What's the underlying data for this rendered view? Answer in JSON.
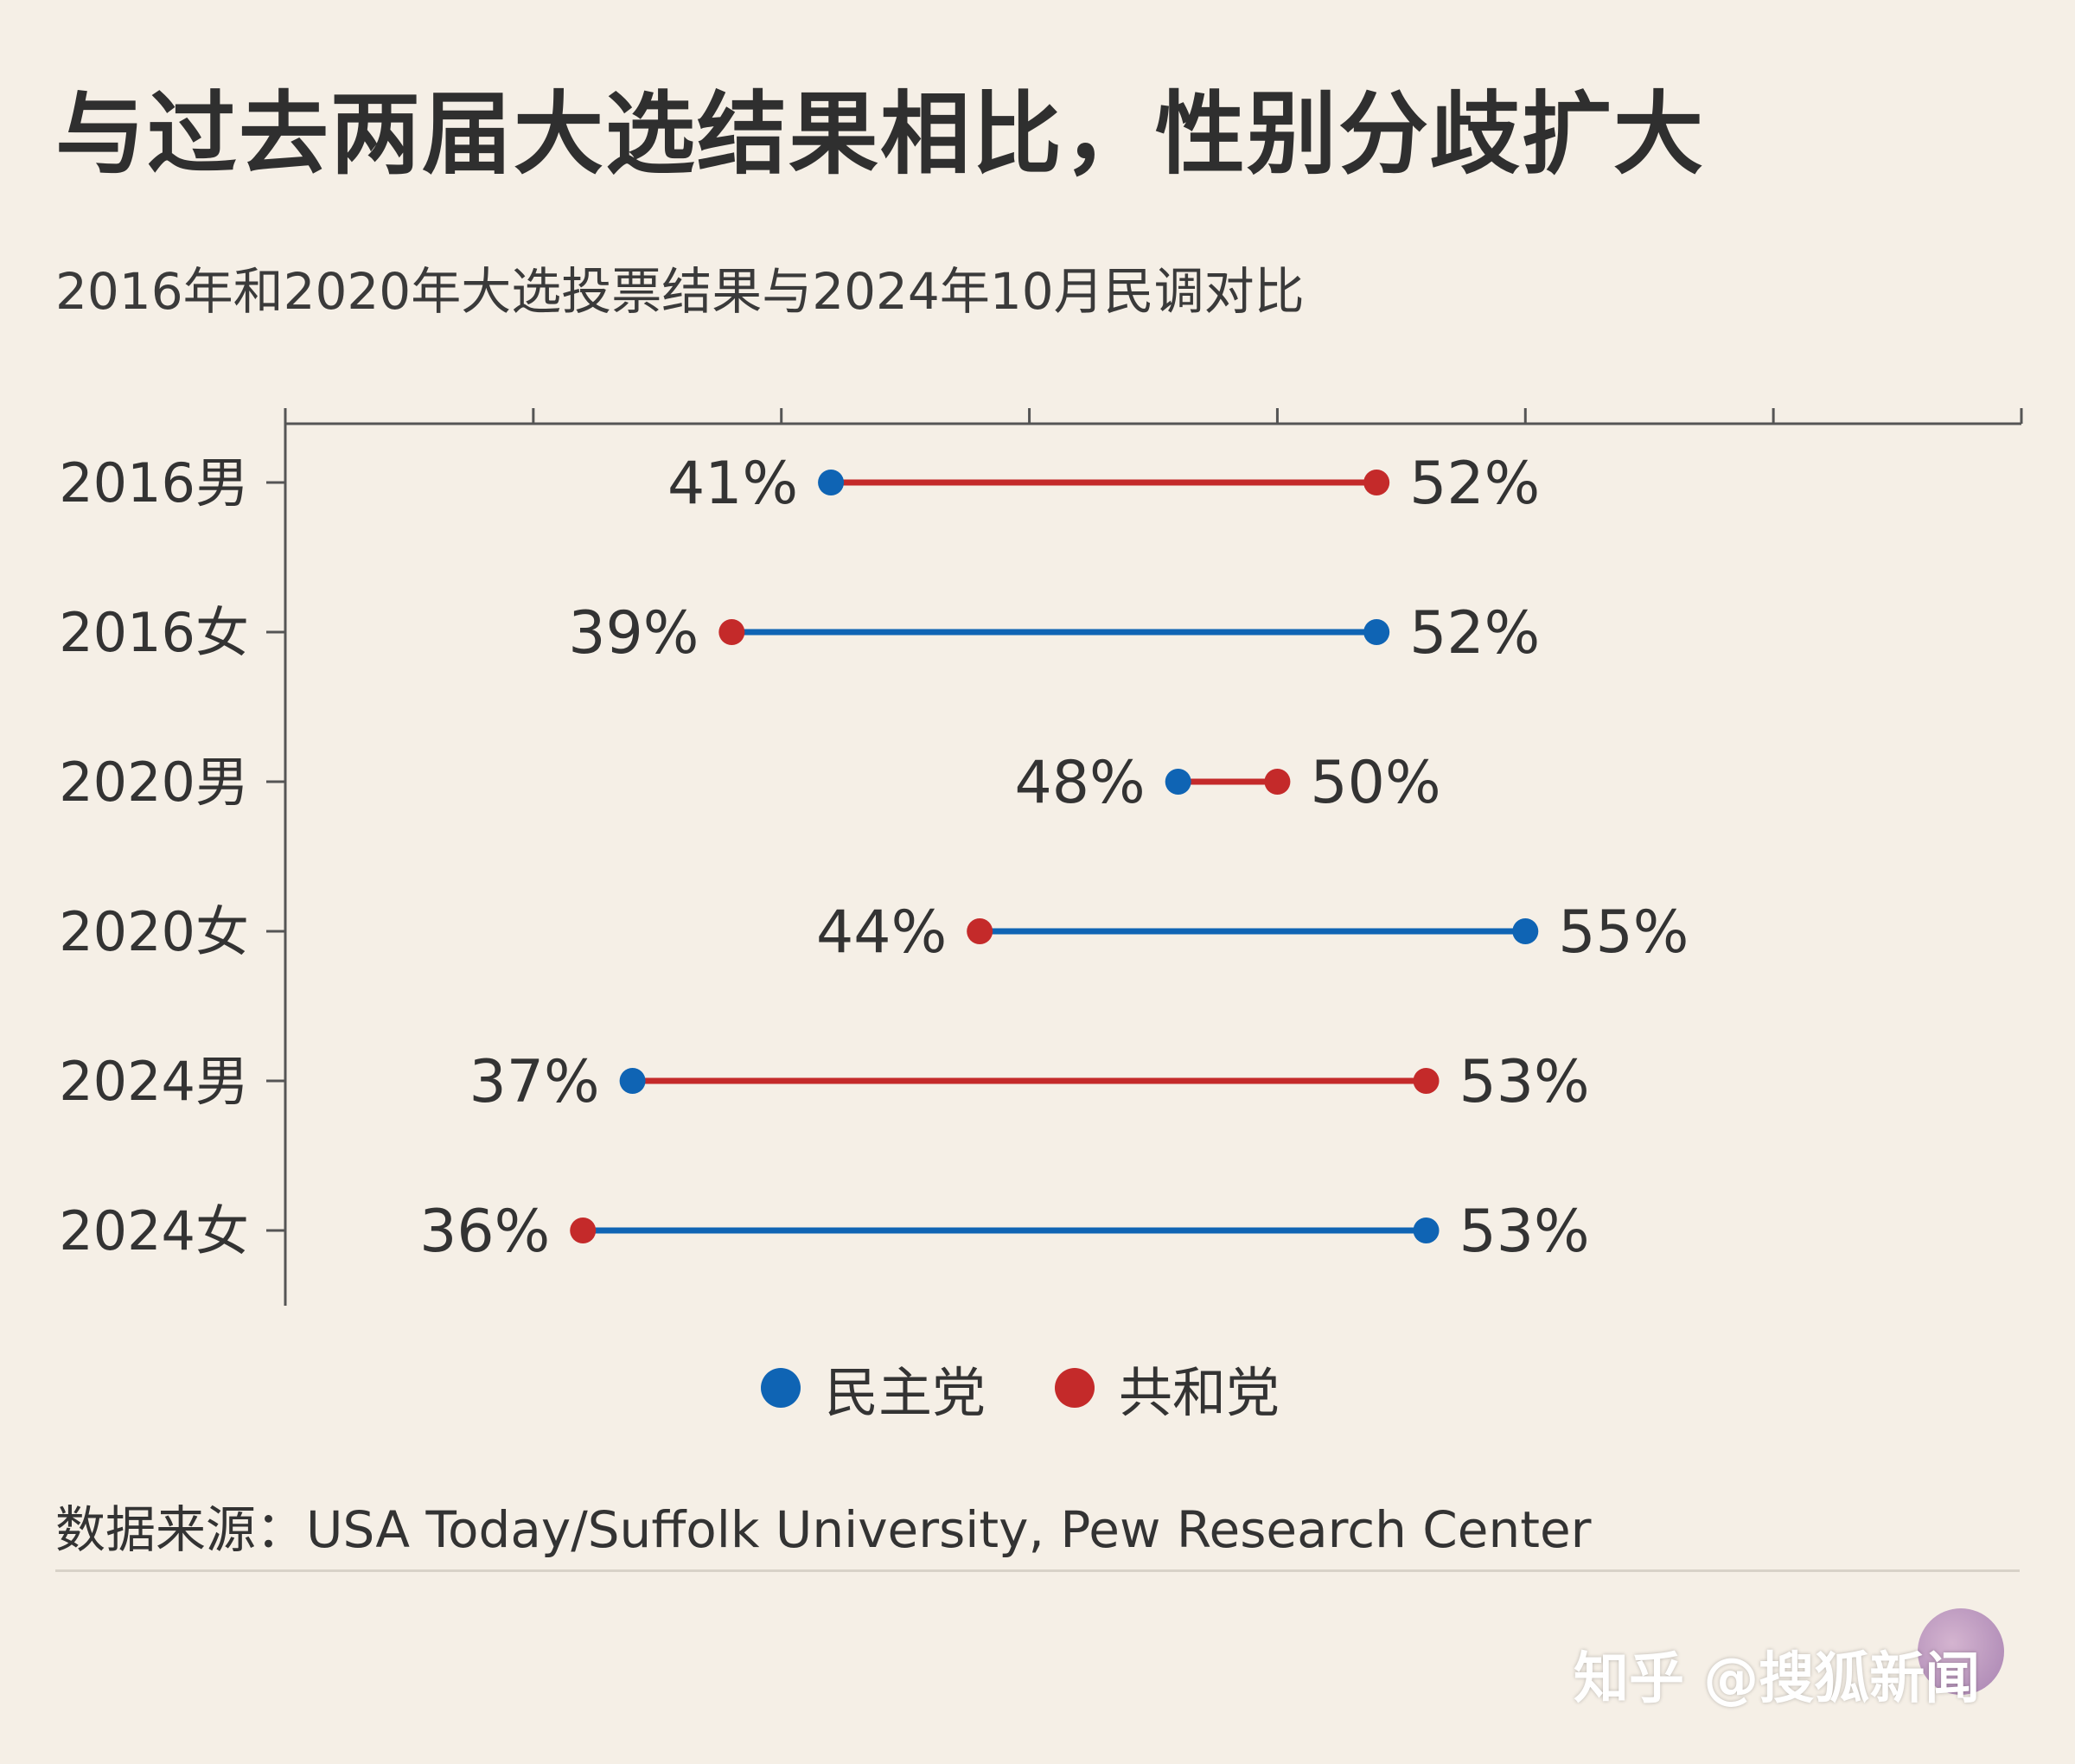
{
  "title": "与过去两届大选结果相比，性别分歧扩大",
  "subtitle": "2016年和2020年大选投票结果与2024年10月民调对比",
  "legend": {
    "dem_label": "民主党",
    "rep_label": "共和党"
  },
  "colors": {
    "dem": "#0f64b4",
    "rep": "#c42a2a",
    "axis": "#555555",
    "background": "#f5efe6"
  },
  "source": "数据来源：USA Today/Suffolk University, Pew Research Center",
  "watermark": "知乎 @搜狐新闻",
  "chart_data": {
    "type": "dumbbell",
    "xlim": [
      30,
      65
    ],
    "x_ticks": [
      30,
      35,
      40,
      45,
      50,
      55,
      60,
      65
    ],
    "x_tick_labels_shown": false,
    "grid": false,
    "legend_position": "bottom-center",
    "categories": [
      "2016男",
      "2016女",
      "2020男",
      "2020女",
      "2024男",
      "2024女"
    ],
    "series": [
      {
        "name": "民主党",
        "color": "#0f64b4",
        "values": [
          41,
          52,
          48,
          55,
          37,
          53
        ]
      },
      {
        "name": "共和党",
        "color": "#c42a2a",
        "values": [
          52,
          39,
          50,
          44,
          53,
          36
        ]
      }
    ],
    "value_labels": {
      "民主党": [
        "41%",
        "52%",
        "48%",
        "55%",
        "37%",
        "53%"
      ],
      "共和党": [
        "52%",
        "39%",
        "50%",
        "44%",
        "53%",
        "36%"
      ]
    },
    "connector_color": [
      "rep",
      "dem",
      "rep",
      "dem",
      "rep",
      "dem"
    ]
  }
}
